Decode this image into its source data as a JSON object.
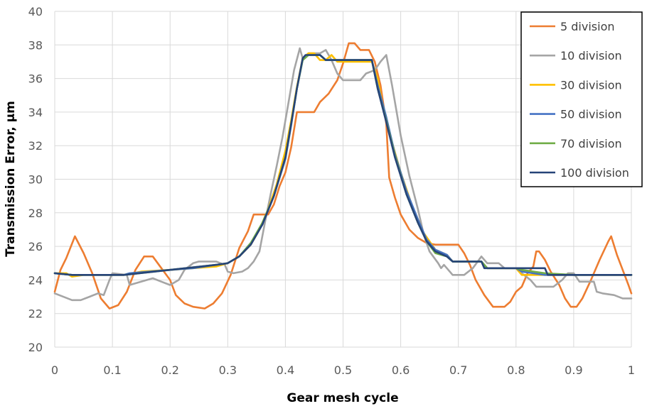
{
  "chart_data": {
    "type": "line",
    "xlabel": "Gear mesh cycle",
    "ylabel": "Transmission Error, μm",
    "xlim": [
      0,
      1
    ],
    "ylim": [
      20,
      40
    ],
    "xticks": [
      "0",
      "0.1",
      "0.2",
      "0.3",
      "0.4",
      "0.5",
      "0.6",
      "0.7",
      "0.8",
      "0.9",
      "1"
    ],
    "yticks": [
      "20",
      "22",
      "24",
      "26",
      "28",
      "30",
      "32",
      "34",
      "36",
      "38",
      "40"
    ],
    "grid": "vertical and horizontal",
    "legend_position": "top-right",
    "series": [
      {
        "name": "5 division",
        "color": "#ED7D31",
        "points": [
          [
            0,
            23.3
          ],
          [
            0.01,
            24.6
          ],
          [
            0.02,
            25.3
          ],
          [
            0.035,
            26.6
          ],
          [
            0.05,
            25.6
          ],
          [
            0.065,
            24.4
          ],
          [
            0.08,
            22.9
          ],
          [
            0.095,
            22.3
          ],
          [
            0.11,
            22.5
          ],
          [
            0.125,
            23.3
          ],
          [
            0.14,
            24.6
          ],
          [
            0.155,
            25.4
          ],
          [
            0.17,
            25.4
          ],
          [
            0.185,
            24.7
          ],
          [
            0.2,
            24.0
          ],
          [
            0.21,
            23.1
          ],
          [
            0.225,
            22.6
          ],
          [
            0.24,
            22.4
          ],
          [
            0.26,
            22.3
          ],
          [
            0.275,
            22.6
          ],
          [
            0.29,
            23.2
          ],
          [
            0.305,
            24.3
          ],
          [
            0.32,
            25.9
          ],
          [
            0.335,
            26.9
          ],
          [
            0.345,
            27.9
          ],
          [
            0.37,
            27.9
          ],
          [
            0.38,
            28.5
          ],
          [
            0.39,
            29.6
          ],
          [
            0.4,
            30.4
          ],
          [
            0.41,
            31.9
          ],
          [
            0.42,
            34.0
          ],
          [
            0.45,
            34.0
          ],
          [
            0.46,
            34.6
          ],
          [
            0.475,
            35.1
          ],
          [
            0.49,
            35.9
          ],
          [
            0.5,
            36.9
          ],
          [
            0.51,
            38.1
          ],
          [
            0.52,
            38.1
          ],
          [
            0.53,
            37.7
          ],
          [
            0.545,
            37.7
          ],
          [
            0.555,
            37.0
          ],
          [
            0.565,
            35.6
          ],
          [
            0.575,
            33.3
          ],
          [
            0.58,
            30.1
          ],
          [
            0.59,
            28.9
          ],
          [
            0.6,
            27.9
          ],
          [
            0.615,
            27.0
          ],
          [
            0.63,
            26.5
          ],
          [
            0.645,
            26.2
          ],
          [
            0.66,
            26.1
          ],
          [
            0.7,
            26.1
          ],
          [
            0.71,
            25.6
          ],
          [
            0.72,
            24.9
          ],
          [
            0.73,
            24.0
          ],
          [
            0.745,
            23.1
          ],
          [
            0.76,
            22.4
          ],
          [
            0.78,
            22.4
          ],
          [
            0.79,
            22.7
          ],
          [
            0.8,
            23.3
          ],
          [
            0.81,
            23.6
          ],
          [
            0.82,
            24.4
          ],
          [
            0.83,
            24.8
          ],
          [
            0.835,
            25.7
          ],
          [
            0.84,
            25.7
          ],
          [
            0.85,
            25.2
          ],
          [
            0.86,
            24.5
          ],
          [
            0.875,
            23.7
          ],
          [
            0.885,
            22.9
          ],
          [
            0.895,
            22.4
          ],
          [
            0.905,
            22.4
          ],
          [
            0.915,
            22.9
          ],
          [
            0.93,
            24.0
          ],
          [
            0.945,
            25.2
          ],
          [
            0.96,
            26.3
          ],
          [
            0.965,
            26.6
          ],
          [
            0.975,
            25.5
          ],
          [
            0.985,
            24.6
          ],
          [
            0.995,
            23.7
          ],
          [
            1,
            23.2
          ]
        ]
      },
      {
        "name": "10 division",
        "color": "#A5A5A5",
        "points": [
          [
            0,
            23.2
          ],
          [
            0.015,
            23.0
          ],
          [
            0.03,
            22.8
          ],
          [
            0.045,
            22.8
          ],
          [
            0.06,
            23.0
          ],
          [
            0.075,
            23.2
          ],
          [
            0.085,
            23.1
          ],
          [
            0.095,
            24.0
          ],
          [
            0.1,
            24.4
          ],
          [
            0.125,
            24.3
          ],
          [
            0.13,
            23.7
          ],
          [
            0.15,
            23.9
          ],
          [
            0.17,
            24.1
          ],
          [
            0.185,
            23.9
          ],
          [
            0.2,
            23.7
          ],
          [
            0.215,
            24.0
          ],
          [
            0.225,
            24.6
          ],
          [
            0.24,
            25.0
          ],
          [
            0.25,
            25.1
          ],
          [
            0.28,
            25.1
          ],
          [
            0.295,
            24.9
          ],
          [
            0.3,
            24.5
          ],
          [
            0.31,
            24.4
          ],
          [
            0.325,
            24.5
          ],
          [
            0.335,
            24.7
          ],
          [
            0.345,
            25.1
          ],
          [
            0.355,
            25.7
          ],
          [
            0.365,
            27.5
          ],
          [
            0.375,
            29.2
          ],
          [
            0.385,
            30.8
          ],
          [
            0.395,
            32.5
          ],
          [
            0.405,
            34.5
          ],
          [
            0.415,
            36.5
          ],
          [
            0.425,
            37.8
          ],
          [
            0.43,
            37.2
          ],
          [
            0.44,
            37.5
          ],
          [
            0.46,
            37.5
          ],
          [
            0.47,
            37.7
          ],
          [
            0.48,
            37.1
          ],
          [
            0.49,
            36.3
          ],
          [
            0.5,
            35.9
          ],
          [
            0.53,
            35.9
          ],
          [
            0.54,
            36.3
          ],
          [
            0.555,
            36.5
          ],
          [
            0.565,
            37.0
          ],
          [
            0.575,
            37.4
          ],
          [
            0.585,
            35.6
          ],
          [
            0.6,
            32.6
          ],
          [
            0.615,
            30.2
          ],
          [
            0.63,
            28.2
          ],
          [
            0.64,
            26.7
          ],
          [
            0.65,
            25.7
          ],
          [
            0.665,
            25.0
          ],
          [
            0.67,
            24.7
          ],
          [
            0.675,
            24.9
          ],
          [
            0.68,
            24.7
          ],
          [
            0.69,
            24.3
          ],
          [
            0.71,
            24.3
          ],
          [
            0.725,
            24.7
          ],
          [
            0.74,
            25.4
          ],
          [
            0.75,
            25.0
          ],
          [
            0.77,
            25.0
          ],
          [
            0.78,
            24.7
          ],
          [
            0.79,
            24.7
          ],
          [
            0.8,
            24.7
          ],
          [
            0.81,
            24.4
          ],
          [
            0.825,
            24.0
          ],
          [
            0.835,
            23.6
          ],
          [
            0.865,
            23.6
          ],
          [
            0.88,
            24.0
          ],
          [
            0.89,
            24.4
          ],
          [
            0.9,
            24.4
          ],
          [
            0.91,
            23.9
          ],
          [
            0.935,
            23.9
          ],
          [
            0.94,
            23.3
          ],
          [
            0.95,
            23.2
          ],
          [
            0.97,
            23.1
          ],
          [
            0.985,
            22.9
          ],
          [
            1,
            22.9
          ]
        ]
      },
      {
        "name": "30 division",
        "color": "#FFC000",
        "points": [
          [
            0,
            24.4
          ],
          [
            0.02,
            24.4
          ],
          [
            0.03,
            24.2
          ],
          [
            0.05,
            24.3
          ],
          [
            0.07,
            24.3
          ],
          [
            0.1,
            24.3
          ],
          [
            0.12,
            24.3
          ],
          [
            0.15,
            24.5
          ],
          [
            0.2,
            24.6
          ],
          [
            0.24,
            24.7
          ],
          [
            0.28,
            24.8
          ],
          [
            0.3,
            25.0
          ],
          [
            0.32,
            25.4
          ],
          [
            0.34,
            26.1
          ],
          [
            0.355,
            27.0
          ],
          [
            0.37,
            28.2
          ],
          [
            0.385,
            29.7
          ],
          [
            0.4,
            31.7
          ],
          [
            0.41,
            33.5
          ],
          [
            0.42,
            35.5
          ],
          [
            0.43,
            37.2
          ],
          [
            0.44,
            37.5
          ],
          [
            0.45,
            37.5
          ],
          [
            0.46,
            37.1
          ],
          [
            0.47,
            37.1
          ],
          [
            0.48,
            37.4
          ],
          [
            0.49,
            37.0
          ],
          [
            0.55,
            37.0
          ],
          [
            0.56,
            36.0
          ],
          [
            0.57,
            34.2
          ],
          [
            0.585,
            32.2
          ],
          [
            0.6,
            30.4
          ],
          [
            0.62,
            28.4
          ],
          [
            0.64,
            26.8
          ],
          [
            0.66,
            25.8
          ],
          [
            0.68,
            25.5
          ],
          [
            0.69,
            25.1
          ],
          [
            0.7,
            25.1
          ],
          [
            0.74,
            25.1
          ],
          [
            0.75,
            24.7
          ],
          [
            0.8,
            24.7
          ],
          [
            0.81,
            24.3
          ],
          [
            0.85,
            24.3
          ],
          [
            0.9,
            24.3
          ],
          [
            0.95,
            24.3
          ],
          [
            1,
            24.3
          ]
        ]
      },
      {
        "name": "50 division",
        "color": "#4472C4",
        "points": [
          [
            0,
            24.4
          ],
          [
            0.03,
            24.3
          ],
          [
            0.1,
            24.3
          ],
          [
            0.12,
            24.3
          ],
          [
            0.13,
            24.4
          ],
          [
            0.2,
            24.6
          ],
          [
            0.24,
            24.7
          ],
          [
            0.28,
            24.9
          ],
          [
            0.3,
            25.0
          ],
          [
            0.32,
            25.4
          ],
          [
            0.34,
            26.2
          ],
          [
            0.36,
            27.3
          ],
          [
            0.38,
            29.0
          ],
          [
            0.4,
            31.2
          ],
          [
            0.41,
            33.2
          ],
          [
            0.42,
            35.4
          ],
          [
            0.43,
            37.1
          ],
          [
            0.44,
            37.4
          ],
          [
            0.46,
            37.4
          ],
          [
            0.47,
            37.1
          ],
          [
            0.55,
            37.1
          ],
          [
            0.56,
            35.6
          ],
          [
            0.575,
            33.7
          ],
          [
            0.59,
            31.5
          ],
          [
            0.61,
            29.3
          ],
          [
            0.63,
            27.6
          ],
          [
            0.645,
            26.4
          ],
          [
            0.66,
            25.8
          ],
          [
            0.68,
            25.5
          ],
          [
            0.69,
            25.1
          ],
          [
            0.74,
            25.1
          ],
          [
            0.75,
            24.7
          ],
          [
            0.8,
            24.7
          ],
          [
            0.81,
            24.5
          ],
          [
            0.85,
            24.3
          ],
          [
            0.9,
            24.3
          ],
          [
            1,
            24.3
          ]
        ]
      },
      {
        "name": "70 division",
        "color": "#70AD47",
        "points": [
          [
            0,
            24.4
          ],
          [
            0.03,
            24.3
          ],
          [
            0.12,
            24.3
          ],
          [
            0.2,
            24.6
          ],
          [
            0.28,
            24.9
          ],
          [
            0.3,
            25.0
          ],
          [
            0.32,
            25.4
          ],
          [
            0.34,
            26.2
          ],
          [
            0.36,
            27.4
          ],
          [
            0.38,
            29.0
          ],
          [
            0.4,
            31.3
          ],
          [
            0.41,
            33.3
          ],
          [
            0.42,
            35.4
          ],
          [
            0.43,
            37.1
          ],
          [
            0.44,
            37.4
          ],
          [
            0.46,
            37.4
          ],
          [
            0.47,
            37.1
          ],
          [
            0.55,
            37.1
          ],
          [
            0.56,
            35.4
          ],
          [
            0.575,
            33.5
          ],
          [
            0.59,
            31.4
          ],
          [
            0.61,
            29.1
          ],
          [
            0.63,
            27.4
          ],
          [
            0.645,
            26.3
          ],
          [
            0.66,
            25.6
          ],
          [
            0.68,
            25.4
          ],
          [
            0.69,
            25.1
          ],
          [
            0.74,
            25.1
          ],
          [
            0.75,
            24.7
          ],
          [
            0.8,
            24.7
          ],
          [
            0.81,
            24.6
          ],
          [
            0.85,
            24.4
          ],
          [
            0.9,
            24.3
          ],
          [
            1,
            24.3
          ]
        ]
      },
      {
        "name": "100 division",
        "color": "#264478",
        "points": [
          [
            0,
            24.4
          ],
          [
            0.03,
            24.3
          ],
          [
            0.12,
            24.3
          ],
          [
            0.2,
            24.6
          ],
          [
            0.28,
            24.9
          ],
          [
            0.3,
            25.0
          ],
          [
            0.32,
            25.4
          ],
          [
            0.34,
            26.1
          ],
          [
            0.36,
            27.3
          ],
          [
            0.38,
            29.0
          ],
          [
            0.4,
            31.3
          ],
          [
            0.41,
            33.3
          ],
          [
            0.42,
            35.4
          ],
          [
            0.43,
            37.2
          ],
          [
            0.435,
            37.4
          ],
          [
            0.46,
            37.4
          ],
          [
            0.47,
            37.1
          ],
          [
            0.55,
            37.1
          ],
          [
            0.56,
            35.4
          ],
          [
            0.575,
            33.4
          ],
          [
            0.59,
            31.3
          ],
          [
            0.61,
            29.1
          ],
          [
            0.63,
            27.4
          ],
          [
            0.645,
            26.3
          ],
          [
            0.66,
            25.7
          ],
          [
            0.68,
            25.4
          ],
          [
            0.69,
            25.1
          ],
          [
            0.74,
            25.1
          ],
          [
            0.745,
            24.7
          ],
          [
            0.8,
            24.7
          ],
          [
            0.85,
            24.7
          ],
          [
            0.855,
            24.3
          ],
          [
            0.9,
            24.3
          ],
          [
            0.95,
            24.3
          ],
          [
            1,
            24.3
          ]
        ]
      }
    ]
  }
}
